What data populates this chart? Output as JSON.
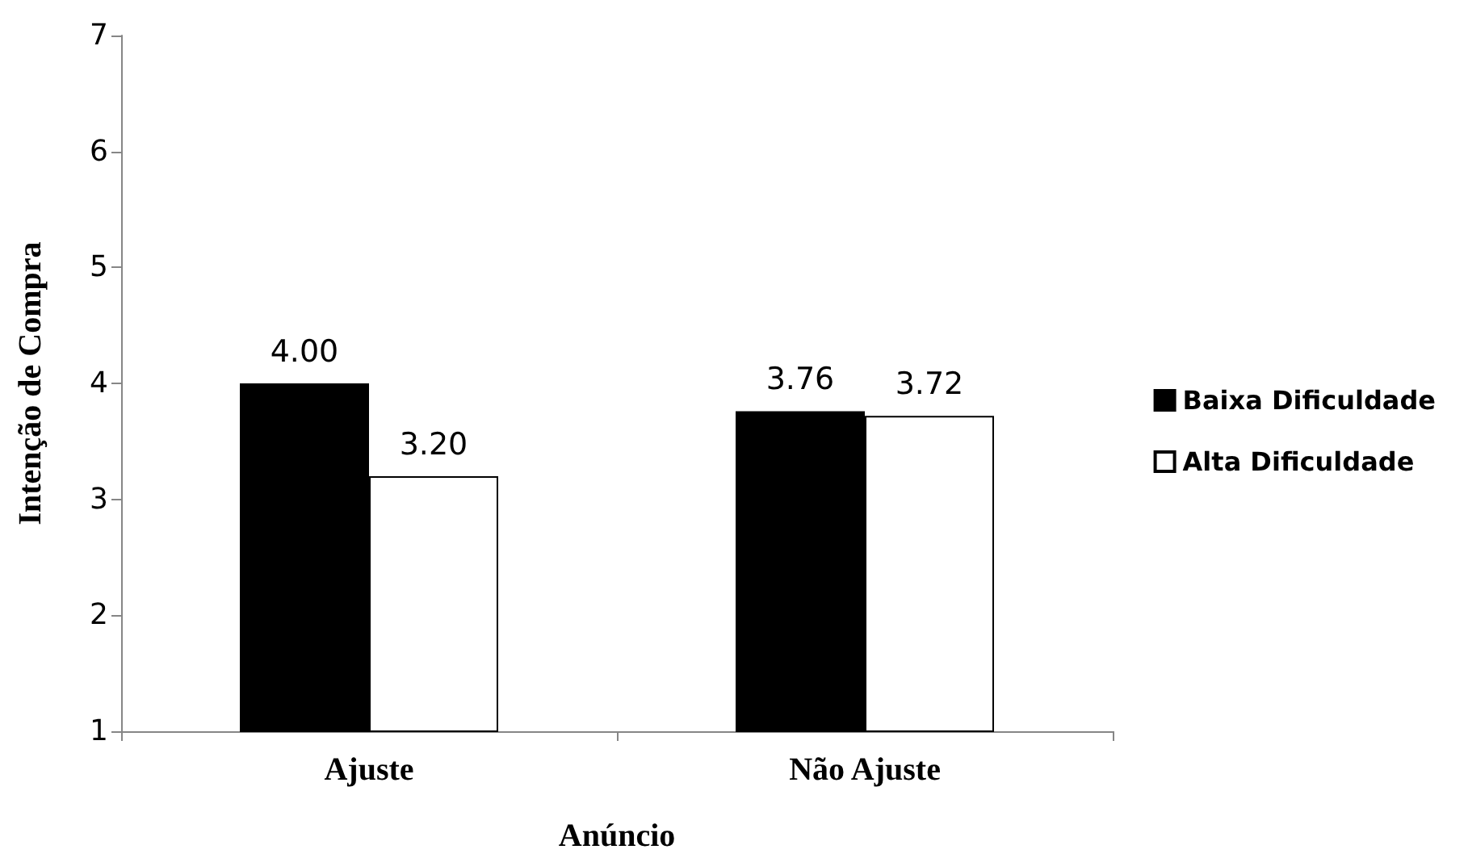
{
  "chart_data": {
    "type": "bar",
    "xlabel": "Anúncio",
    "ylabel": "Intenção de Compra",
    "categories": [
      "Ajuste",
      "Não Ajuste"
    ],
    "series": [
      {
        "name": "Baixa Dificuldade",
        "color": "#000000",
        "values": [
          4.0,
          3.76
        ],
        "value_labels": [
          "4.00",
          "3.76"
        ]
      },
      {
        "name": "Alta Dificuldade",
        "color": "#ffffff",
        "values": [
          3.2,
          3.72
        ],
        "value_labels": [
          "3.20",
          "3.72"
        ]
      }
    ],
    "ylim": [
      1,
      7
    ],
    "yticks": [
      1,
      2,
      3,
      4,
      5,
      6,
      7
    ],
    "grid": false,
    "legend": "right"
  }
}
